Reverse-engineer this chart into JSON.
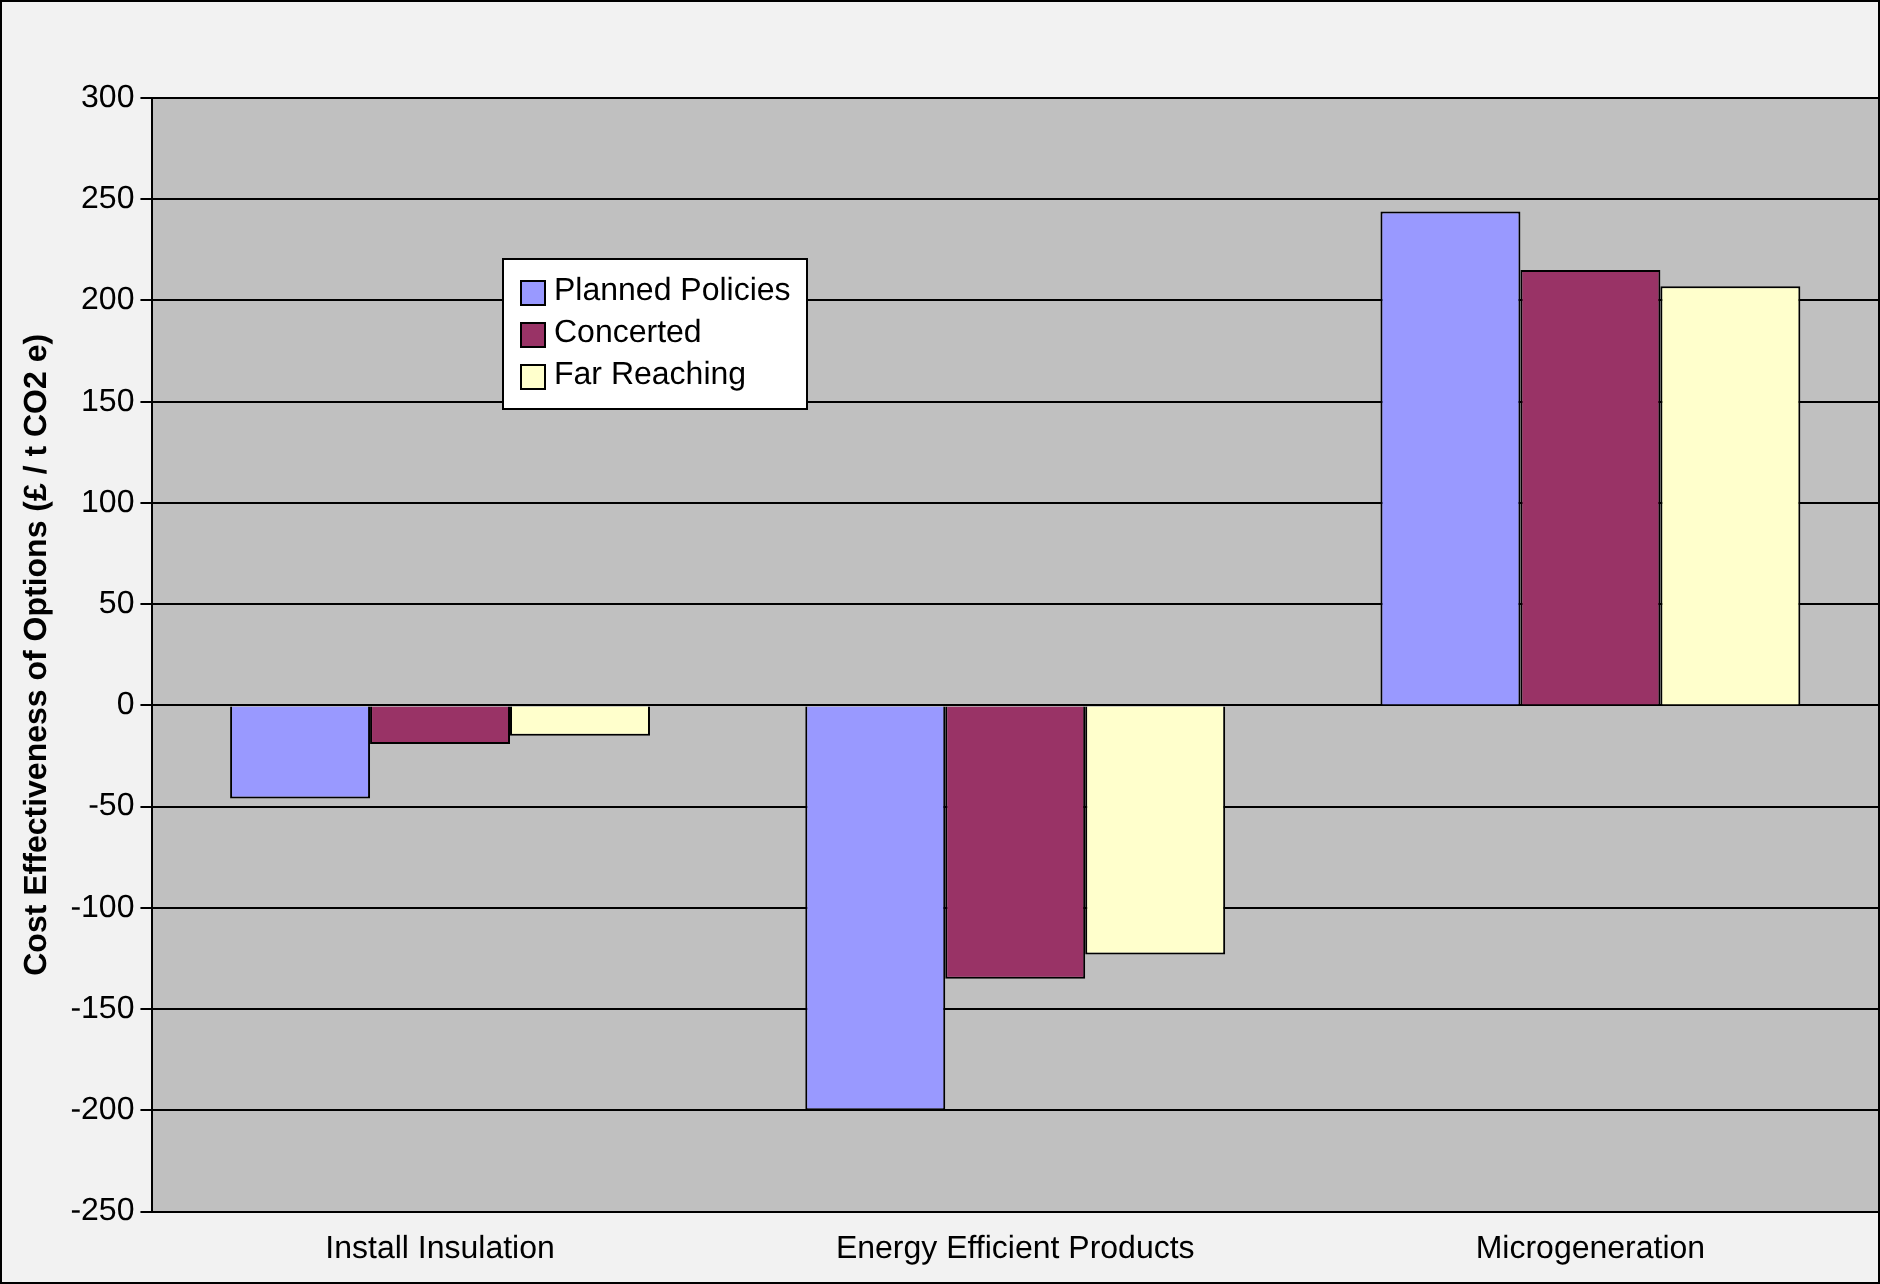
{
  "chart_data": {
    "type": "bar",
    "ylabel": "Cost Effectiveness of Options (£ / t CO2 e)",
    "categories": [
      "Install Insulation",
      "Energy Efficient Products",
      "Microgeneration"
    ],
    "series": [
      {
        "name": "Planned Policies",
        "color": "#9999ff",
        "values": [
          -46,
          -200,
          244
        ]
      },
      {
        "name": "Concerted",
        "color": "#993366",
        "values": [
          -19,
          -135,
          215
        ]
      },
      {
        "name": "Far Reaching",
        "color": "#ffffcc",
        "values": [
          -15,
          -123,
          207
        ]
      }
    ],
    "ylim": [
      -250,
      300
    ],
    "yticks": [
      -250,
      -200,
      -150,
      -100,
      -50,
      0,
      50,
      100,
      150,
      200,
      250,
      300
    ],
    "grid": "y",
    "legend": "top left"
  }
}
